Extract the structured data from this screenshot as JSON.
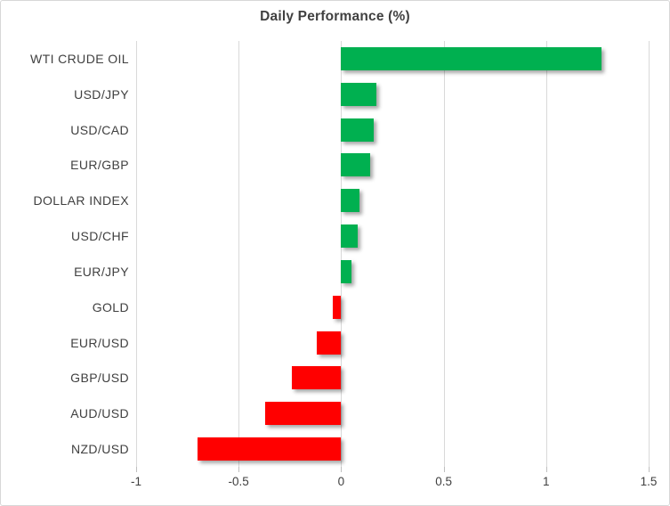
{
  "title": "Daily Performance (%)",
  "colors": {
    "positive_bar": "#00B050",
    "negative_bar": "#FF0000",
    "gridline": "#D9D9D9",
    "tick": "#BFBFBF",
    "axis_text": "#404040",
    "title_text": "#404040",
    "chart_border": "#D7D7D7",
    "background": "#FFFFFF"
  },
  "chart_data": {
    "type": "bar",
    "orientation": "horizontal",
    "title": "Daily Performance (%)",
    "xlabel": "",
    "ylabel": "",
    "categories": [
      "WTI CRUDE OIL",
      "USD/JPY",
      "USD/CAD",
      "EUR/GBP",
      "DOLLAR INDEX",
      "USD/CHF",
      "EUR/JPY",
      "GOLD",
      "EUR/USD",
      "GBP/USD",
      "AUD/USD",
      "NZD/USD"
    ],
    "values": [
      1.27,
      0.17,
      0.16,
      0.14,
      0.09,
      0.08,
      0.05,
      -0.04,
      -0.12,
      -0.24,
      -0.37,
      -0.7
    ],
    "xlim": [
      -1,
      1.5
    ],
    "xticks": [
      -1,
      -0.5,
      0,
      0.5,
      1,
      1.5
    ],
    "xtick_labels": [
      "-1",
      "-0.5",
      "0",
      "0.5",
      "1",
      "1.5"
    ],
    "grid": true,
    "legend": false,
    "value_sign_colors": true
  }
}
